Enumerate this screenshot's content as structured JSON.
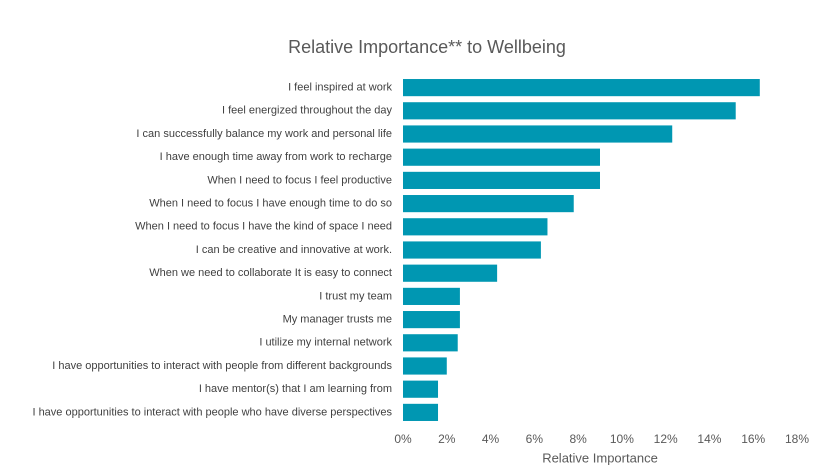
{
  "chart_data": {
    "type": "bar",
    "orientation": "horizontal",
    "title": "Relative Importance** to Wellbeing",
    "x_label": "Relative Importance",
    "categories": [
      "I feel inspired at work",
      "I feel energized throughout the day",
      "I can successfully balance my work and personal life",
      "I have enough time away from work to recharge",
      "When I need to focus I feel productive",
      "When I  need to focus I have enough time to do so",
      "When I  need to focus I have the kind of space I need",
      "I can be creative and innovative at work.",
      "When we need to collaborate It is easy to connect",
      "I trust my team",
      "My manager trusts me",
      "I utilize my internal network",
      "I have opportunities to interact with people from different backgrounds",
      "I have mentor(s) that I am learning from",
      "I have opportunities to interact with people who have diverse perspectives"
    ],
    "values": [
      16.3,
      15.2,
      12.3,
      9.0,
      9.0,
      7.8,
      6.6,
      6.3,
      4.3,
      2.6,
      2.6,
      2.5,
      2.0,
      1.6,
      1.6
    ],
    "color": "#0097b2",
    "xlim": [
      0,
      18
    ],
    "xticks": [
      {
        "value": 0,
        "label": "0%"
      },
      {
        "value": 2,
        "label": "2%"
      },
      {
        "value": 4,
        "label": "4%"
      },
      {
        "value": 6,
        "label": "6%"
      },
      {
        "value": 8,
        "label": "8%"
      },
      {
        "value": 10,
        "label": "10%"
      },
      {
        "value": 12,
        "label": "12%"
      },
      {
        "value": 14,
        "label": "14%"
      },
      {
        "value": 16,
        "label": "16%"
      },
      {
        "value": 18,
        "label": "18%"
      }
    ],
    "grid": false
  }
}
